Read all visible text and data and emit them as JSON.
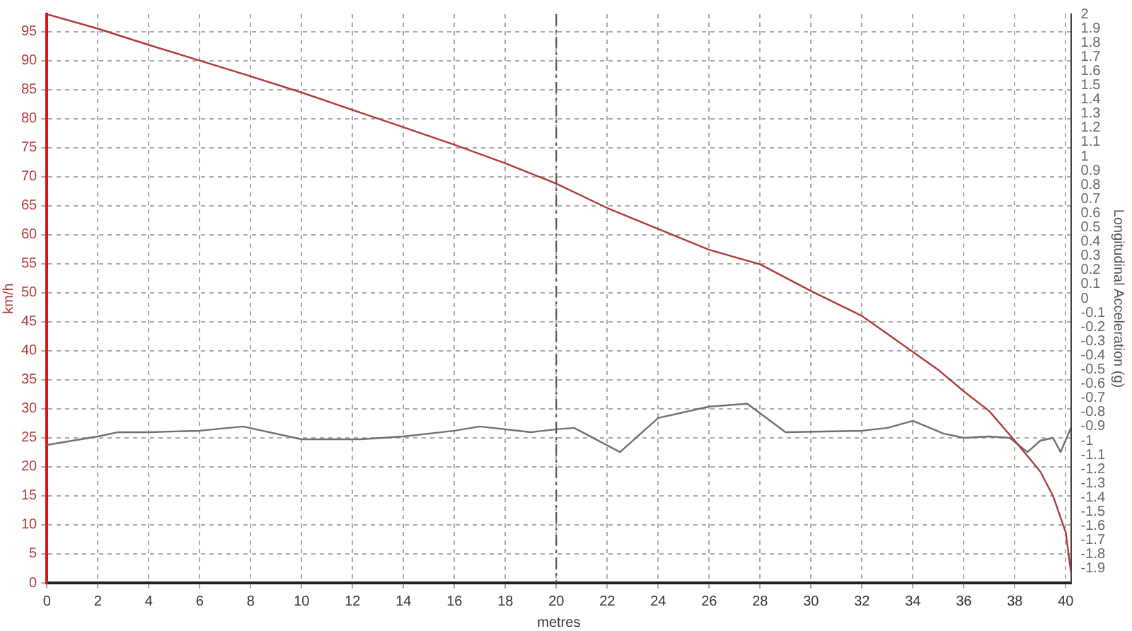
{
  "chart_data": {
    "type": "line",
    "xlabel": "metres",
    "ylabel": "km/h",
    "y2label": "Longitudinal Acceleration (g)",
    "xlim": [
      0,
      40.2
    ],
    "xticks": [
      0,
      2,
      4,
      6,
      8,
      10,
      12,
      14,
      16,
      18,
      20,
      22,
      24,
      26,
      28,
      30,
      32,
      34,
      36,
      38,
      40
    ],
    "ylim": [
      0,
      98
    ],
    "yticks": [
      0,
      5,
      10,
      15,
      20,
      25,
      30,
      35,
      40,
      45,
      50,
      55,
      60,
      65,
      70,
      75,
      80,
      85,
      90,
      95
    ],
    "y2lim": [
      -2,
      2
    ],
    "y2ticks": [
      -1.9,
      -1.8,
      -1.7,
      -1.6,
      -1.5,
      -1.4,
      -1.3,
      -1.2,
      -1.1,
      -1,
      -0.9,
      -0.8,
      -0.7,
      -0.6,
      -0.5,
      -0.4,
      -0.3,
      -0.2,
      -0.1,
      0,
      0.1,
      0.2,
      0.3,
      0.4,
      0.5,
      0.6,
      0.7,
      0.8,
      0.9,
      1,
      1.1,
      1.2,
      1.3,
      1.4,
      1.5,
      1.6,
      1.7,
      1.8,
      1.9,
      2
    ],
    "grid": true,
    "legend": false,
    "marker": "none",
    "line_style": "solid",
    "ref_lines": [
      {
        "axis": "x",
        "value": 20,
        "color": "#505050",
        "line_style": "dashed"
      }
    ],
    "series": [
      {
        "color": "#b03a3a",
        "x": [
          0,
          2,
          4,
          6,
          8,
          10,
          12,
          14,
          16,
          18,
          20,
          22,
          24,
          26,
          28,
          30,
          32,
          34,
          35,
          36,
          37,
          38,
          39,
          39.5,
          40,
          40.2
        ],
        "values": [
          98,
          95.5,
          92.7,
          90,
          87.3,
          84.5,
          81.5,
          78.5,
          75.5,
          72.3,
          68.8,
          64.6,
          61,
          57.4,
          54.9,
          50.3,
          46,
          39.8,
          36.7,
          33,
          29.6,
          24.5,
          19.2,
          15,
          8.7,
          2
        ]
      },
      {
        "color": "#707070",
        "axis": "y2",
        "x": [
          0,
          2,
          2.8,
          4,
          6,
          7.7,
          10,
          12.3,
          14,
          16,
          17,
          19,
          20,
          20.7,
          22.5,
          24,
          26,
          27.5,
          29,
          32,
          33,
          34,
          35.2,
          36,
          37,
          37.8,
          38.5,
          39,
          39.5,
          39.8,
          40.2
        ],
        "values": [
          -1.03,
          -0.97,
          -0.94,
          -0.94,
          -0.93,
          -0.9,
          -0.99,
          -0.99,
          -0.97,
          -0.93,
          -0.9,
          -0.94,
          -0.92,
          -0.91,
          -1.08,
          -0.84,
          -0.76,
          -0.74,
          -0.94,
          -0.93,
          -0.91,
          -0.86,
          -0.95,
          -0.98,
          -0.97,
          -0.98,
          -1.08,
          -1.0,
          -0.98,
          -1.08,
          -0.91
        ]
      }
    ]
  }
}
